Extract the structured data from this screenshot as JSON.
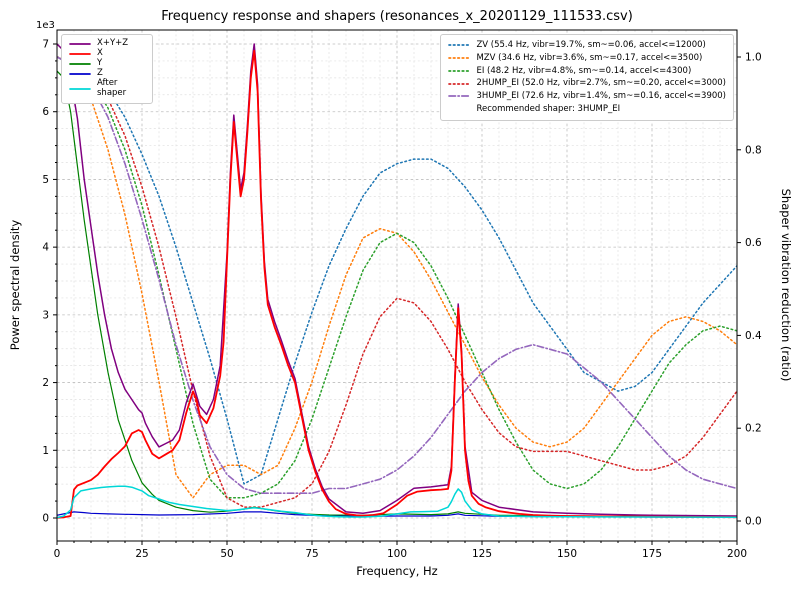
{
  "title": "Frequency response and shapers (resonances_x_20201129_111533.csv)",
  "axes": {
    "x": {
      "label": "Frequency, Hz",
      "min": 0,
      "max": 200,
      "ticks": [
        0,
        25,
        50,
        75,
        100,
        125,
        150,
        175,
        200
      ]
    },
    "y_left": {
      "label": "Power spectral density",
      "offset_text": "1e3",
      "min": 0,
      "max": 7000,
      "ticks": [
        0,
        1,
        2,
        3,
        4,
        5,
        6,
        7
      ]
    },
    "y_right": {
      "label": "Shaper vibration reduction (ratio)",
      "min": 0,
      "max": 1,
      "ticks": [
        "0.0",
        "0.2",
        "0.4",
        "0.6",
        "0.8",
        "1.0"
      ]
    }
  },
  "legend_psd": {
    "items": [
      {
        "label": "X+Y+Z",
        "color": "#800080",
        "style": "solid"
      },
      {
        "label": "X",
        "color": "#ff0000",
        "style": "solid"
      },
      {
        "label": "Y",
        "color": "#008000",
        "style": "solid"
      },
      {
        "label": "Z",
        "color": "#0000cc",
        "style": "solid"
      },
      {
        "label": "After shaper",
        "color": "#00d7d7",
        "style": "solid"
      }
    ]
  },
  "legend_shapers": {
    "items": [
      {
        "label": "ZV (55.4 Hz, vibr=19.7%, sm~=0.06, accel<=12000)",
        "color": "#1f77b4",
        "style": "dotted"
      },
      {
        "label": "MZV (34.6 Hz, vibr=3.6%, sm~=0.17, accel<=3500)",
        "color": "#ff7f0e",
        "style": "dotted"
      },
      {
        "label": "EI (48.2 Hz, vibr=4.8%, sm~=0.14, accel<=4300)",
        "color": "#2ca02c",
        "style": "dotted"
      },
      {
        "label": "2HUMP_EI (52.0 Hz, vibr=2.7%, sm~=0.20, accel<=3000)",
        "color": "#d62728",
        "style": "dotted"
      },
      {
        "label": "3HUMP_EI (72.6 Hz, vibr=1.4%, sm~=0.16, accel<=3900)",
        "color": "#9467bd",
        "style": "dashdot"
      }
    ],
    "note": "Recommended shaper: 3HUMP_EI"
  },
  "chart_data": {
    "type": "line",
    "title": "Frequency response and shapers (resonances_x_20201129_111533.csv)",
    "xlabel": "Frequency, Hz",
    "ylabel_left": "Power spectral density",
    "ylabel_right": "Shaper vibration reduction (ratio)",
    "xlim": [
      0,
      200
    ],
    "ylim_left": [
      0,
      7000
    ],
    "ylim_right": [
      0,
      1
    ],
    "grid": "major+minor dashed",
    "legend_positions": [
      "upper left",
      "upper right"
    ],
    "recommended_shaper": "3HUMP_EI",
    "series": [
      {
        "name": "ZV",
        "axis": "ratio",
        "color": "#1f77b4",
        "style": "dotted",
        "width": 1.5,
        "x": [
          0,
          5,
          10,
          15,
          20,
          25,
          30,
          35,
          40,
          45,
          50,
          55,
          60,
          65,
          70,
          75,
          80,
          85,
          90,
          95,
          100,
          105,
          110,
          115,
          120,
          125,
          130,
          135,
          140,
          145,
          150,
          155,
          160,
          165,
          170,
          175,
          180,
          185,
          190,
          195,
          200
        ],
        "y": [
          1.0,
          0.99,
          0.97,
          0.93,
          0.87,
          0.79,
          0.7,
          0.59,
          0.47,
          0.35,
          0.22,
          0.08,
          0.1,
          0.22,
          0.34,
          0.45,
          0.55,
          0.63,
          0.7,
          0.75,
          0.77,
          0.78,
          0.78,
          0.76,
          0.72,
          0.67,
          0.61,
          0.54,
          0.47,
          0.42,
          0.37,
          0.32,
          0.3,
          0.28,
          0.29,
          0.32,
          0.37,
          0.42,
          0.47,
          0.51,
          0.55
        ]
      },
      {
        "name": "MZV",
        "axis": "ratio",
        "color": "#ff7f0e",
        "style": "dotted",
        "width": 1.5,
        "x": [
          0,
          5,
          10,
          15,
          20,
          25,
          30,
          35,
          40,
          45,
          50,
          55,
          60,
          65,
          70,
          75,
          80,
          85,
          90,
          95,
          100,
          105,
          110,
          115,
          120,
          125,
          130,
          135,
          140,
          145,
          150,
          155,
          160,
          165,
          170,
          175,
          180,
          185,
          190,
          195,
          200
        ],
        "y": [
          1.0,
          0.98,
          0.91,
          0.8,
          0.66,
          0.49,
          0.3,
          0.1,
          0.05,
          0.1,
          0.12,
          0.12,
          0.1,
          0.12,
          0.2,
          0.3,
          0.42,
          0.53,
          0.61,
          0.63,
          0.62,
          0.58,
          0.52,
          0.45,
          0.38,
          0.31,
          0.25,
          0.2,
          0.17,
          0.16,
          0.17,
          0.2,
          0.25,
          0.3,
          0.35,
          0.4,
          0.43,
          0.44,
          0.43,
          0.41,
          0.38
        ]
      },
      {
        "name": "EI",
        "axis": "ratio",
        "color": "#2ca02c",
        "style": "dotted",
        "width": 1.5,
        "x": [
          0,
          5,
          10,
          15,
          20,
          25,
          30,
          35,
          40,
          45,
          50,
          55,
          60,
          65,
          70,
          75,
          80,
          85,
          90,
          95,
          100,
          105,
          110,
          115,
          120,
          125,
          130,
          135,
          140,
          145,
          150,
          155,
          160,
          165,
          170,
          175,
          180,
          185,
          190,
          195,
          200
        ],
        "y": [
          1.0,
          0.99,
          0.95,
          0.89,
          0.8,
          0.68,
          0.53,
          0.37,
          0.21,
          0.09,
          0.05,
          0.05,
          0.06,
          0.08,
          0.13,
          0.22,
          0.33,
          0.44,
          0.54,
          0.6,
          0.62,
          0.6,
          0.55,
          0.48,
          0.4,
          0.32,
          0.24,
          0.17,
          0.11,
          0.08,
          0.07,
          0.08,
          0.11,
          0.16,
          0.22,
          0.28,
          0.34,
          0.38,
          0.41,
          0.42,
          0.41
        ]
      },
      {
        "name": "2HUMP_EI",
        "axis": "ratio",
        "color": "#d62728",
        "style": "dotted",
        "width": 1.5,
        "x": [
          0,
          5,
          10,
          15,
          20,
          25,
          30,
          35,
          40,
          45,
          50,
          55,
          60,
          65,
          70,
          75,
          80,
          85,
          90,
          95,
          100,
          105,
          110,
          115,
          120,
          125,
          130,
          135,
          140,
          145,
          150,
          155,
          160,
          165,
          170,
          175,
          180,
          185,
          190,
          195,
          200
        ],
        "y": [
          1.0,
          0.99,
          0.96,
          0.91,
          0.83,
          0.72,
          0.59,
          0.44,
          0.28,
          0.14,
          0.05,
          0.03,
          0.03,
          0.04,
          0.05,
          0.08,
          0.15,
          0.25,
          0.36,
          0.44,
          0.48,
          0.47,
          0.43,
          0.37,
          0.3,
          0.24,
          0.19,
          0.16,
          0.15,
          0.15,
          0.15,
          0.14,
          0.13,
          0.12,
          0.11,
          0.11,
          0.12,
          0.14,
          0.18,
          0.23,
          0.28
        ]
      },
      {
        "name": "3HUMP_EI",
        "axis": "ratio",
        "color": "#9467bd",
        "style": "dashdot",
        "width": 1.6,
        "x": [
          0,
          5,
          10,
          15,
          20,
          25,
          30,
          35,
          40,
          45,
          50,
          55,
          60,
          65,
          70,
          75,
          80,
          85,
          90,
          95,
          100,
          105,
          110,
          115,
          120,
          125,
          130,
          135,
          140,
          145,
          150,
          155,
          160,
          165,
          170,
          175,
          180,
          185,
          190,
          195,
          200
        ],
        "y": [
          1.0,
          0.98,
          0.94,
          0.87,
          0.77,
          0.65,
          0.52,
          0.38,
          0.26,
          0.16,
          0.1,
          0.07,
          0.06,
          0.06,
          0.06,
          0.06,
          0.07,
          0.07,
          0.08,
          0.09,
          0.11,
          0.14,
          0.18,
          0.23,
          0.28,
          0.32,
          0.35,
          0.37,
          0.38,
          0.37,
          0.36,
          0.33,
          0.3,
          0.26,
          0.22,
          0.18,
          0.14,
          0.11,
          0.09,
          0.08,
          0.07
        ]
      },
      {
        "name": "Y",
        "axis": "psd",
        "color": "#008000",
        "style": "solid",
        "width": 1.2,
        "x": [
          0,
          2,
          4,
          6,
          8,
          10,
          12,
          15,
          18,
          20,
          22,
          25,
          28,
          30,
          35,
          40,
          45,
          50,
          55,
          58,
          60,
          65,
          70,
          75,
          80,
          90,
          100,
          110,
          115,
          118,
          120,
          130,
          150,
          175,
          200
        ],
        "y": [
          6600,
          6500,
          6000,
          5200,
          4400,
          3700,
          3000,
          2150,
          1450,
          1150,
          850,
          520,
          350,
          260,
          160,
          110,
          85,
          100,
          130,
          160,
          140,
          100,
          70,
          55,
          45,
          40,
          60,
          50,
          60,
          90,
          70,
          40,
          30,
          25,
          20
        ]
      },
      {
        "name": "Z",
        "axis": "psd",
        "color": "#0000cc",
        "style": "solid",
        "width": 1.2,
        "x": [
          0,
          2,
          5,
          8,
          10,
          15,
          20,
          25,
          30,
          40,
          50,
          55,
          60,
          65,
          70,
          80,
          90,
          100,
          110,
          115,
          118,
          120,
          130,
          150,
          175,
          200
        ],
        "y": [
          40,
          60,
          90,
          80,
          70,
          60,
          55,
          50,
          45,
          50,
          70,
          90,
          90,
          70,
          50,
          30,
          25,
          30,
          30,
          40,
          60,
          40,
          25,
          20,
          15,
          12
        ]
      },
      {
        "name": "X+Y+Z",
        "axis": "psd",
        "color": "#800080",
        "style": "solid",
        "width": 1.5,
        "x": [
          0,
          2,
          4,
          5,
          6,
          8,
          10,
          12,
          14,
          16,
          18,
          20,
          22,
          24,
          25,
          26,
          28,
          30,
          32,
          34,
          36,
          38,
          40,
          42,
          44,
          46,
          48,
          50,
          51,
          52,
          53,
          54,
          55,
          56,
          57,
          58,
          59,
          60,
          61,
          62,
          64,
          66,
          68,
          70,
          72,
          74,
          76,
          78,
          80,
          85,
          90,
          95,
          100,
          105,
          110,
          115,
          116,
          117,
          118,
          119,
          120,
          122,
          125,
          130,
          140,
          150,
          160,
          175,
          200
        ],
        "y": [
          7000,
          6900,
          6400,
          6200,
          5900,
          5000,
          4300,
          3600,
          3000,
          2500,
          2150,
          1900,
          1750,
          1600,
          1550,
          1400,
          1200,
          1050,
          1100,
          1150,
          1300,
          1700,
          1980,
          1650,
          1530,
          1750,
          2250,
          3900,
          5100,
          5950,
          5400,
          4850,
          5100,
          5800,
          6600,
          7000,
          6400,
          4800,
          3780,
          3230,
          2900,
          2620,
          2320,
          2060,
          1550,
          1050,
          720,
          460,
          280,
          90,
          70,
          110,
          260,
          440,
          460,
          490,
          760,
          2060,
          3160,
          2460,
          1060,
          380,
          260,
          160,
          90,
          70,
          55,
          40,
          30
        ]
      },
      {
        "name": "X",
        "axis": "psd",
        "color": "#ff0000",
        "style": "solid",
        "width": 1.8,
        "x": [
          0,
          2,
          4,
          5,
          6,
          8,
          10,
          12,
          14,
          16,
          18,
          20,
          22,
          24,
          25,
          26,
          28,
          30,
          32,
          34,
          36,
          38,
          40,
          41,
          42,
          44,
          46,
          48,
          49,
          50,
          51,
          52,
          53,
          54,
          55,
          56,
          57,
          58,
          59,
          60,
          61,
          62,
          64,
          66,
          68,
          70,
          72,
          74,
          76,
          78,
          80,
          82,
          85,
          88,
          90,
          93,
          96,
          100,
          103,
          106,
          110,
          113,
          115,
          116,
          117,
          118,
          119,
          120,
          121,
          122,
          124,
          126,
          128,
          130,
          133,
          136,
          140,
          145,
          150,
          160,
          170,
          180,
          190,
          200
        ],
        "y": [
          5,
          10,
          30,
          420,
          480,
          520,
          560,
          640,
          760,
          870,
          960,
          1060,
          1250,
          1300,
          1270,
          1150,
          950,
          880,
          940,
          1000,
          1150,
          1550,
          1870,
          1750,
          1520,
          1400,
          1620,
          2100,
          2600,
          3800,
          5000,
          5850,
          5300,
          4750,
          5000,
          5700,
          6500,
          6900,
          6300,
          4700,
          3700,
          3150,
          2820,
          2550,
          2250,
          2000,
          1500,
          1000,
          680,
          420,
          240,
          130,
          60,
          40,
          35,
          45,
          70,
          200,
          330,
          390,
          410,
          420,
          430,
          700,
          2000,
          3100,
          2400,
          1000,
          550,
          330,
          210,
          160,
          130,
          100,
          80,
          60,
          45,
          35,
          30,
          25,
          20,
          18,
          15,
          12
        ]
      },
      {
        "name": "After shaper",
        "axis": "psd",
        "color": "#00d7d7",
        "style": "solid",
        "width": 1.5,
        "x": [
          0,
          2,
          4,
          5,
          7,
          10,
          13,
          15,
          18,
          20,
          22,
          25,
          27,
          30,
          33,
          36,
          40,
          44,
          48,
          50,
          53,
          56,
          58,
          60,
          63,
          66,
          70,
          74,
          78,
          82,
          86,
          90,
          95,
          100,
          104,
          108,
          112,
          115,
          116,
          117,
          118,
          119,
          120,
          122,
          125,
          128,
          130,
          135,
          140,
          150,
          175,
          200
        ],
        "y": [
          5,
          30,
          120,
          300,
          400,
          430,
          450,
          460,
          470,
          470,
          455,
          400,
          330,
          280,
          230,
          200,
          170,
          140,
          120,
          110,
          120,
          140,
          150,
          140,
          120,
          100,
          80,
          50,
          30,
          20,
          15,
          15,
          25,
          60,
          90,
          95,
          100,
          160,
          240,
          350,
          430,
          380,
          250,
          120,
          60,
          40,
          30,
          25,
          20,
          18,
          15,
          12
        ]
      }
    ]
  }
}
